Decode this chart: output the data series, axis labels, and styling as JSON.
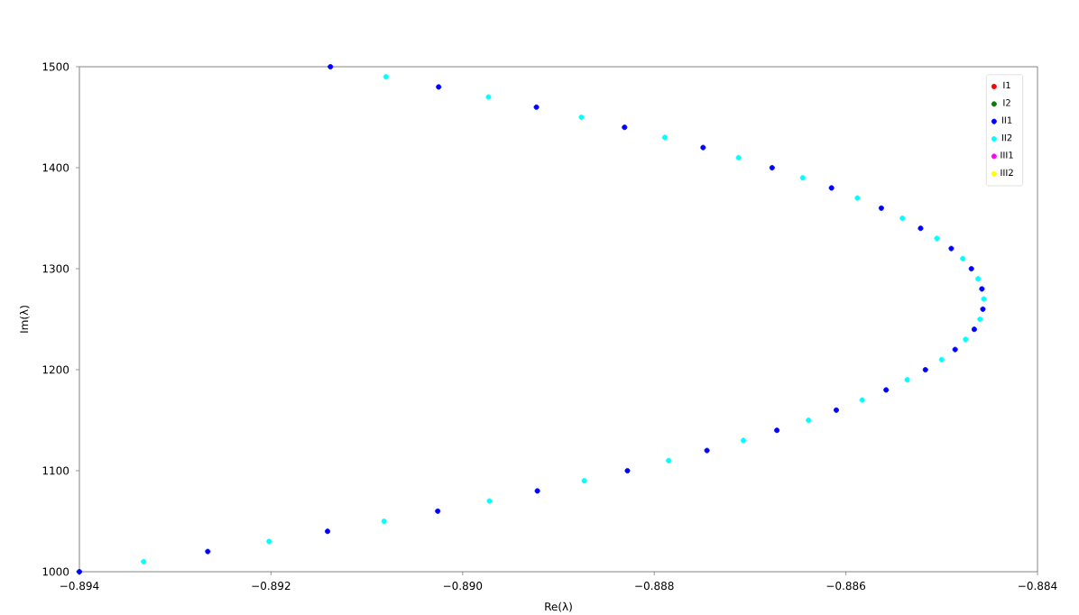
{
  "chart_data": {
    "type": "scatter",
    "xlabel": "Re(λ)",
    "ylabel": "Im(λ)",
    "xlim": [
      -0.894,
      -0.884
    ],
    "ylim": [
      1000,
      1500
    ],
    "xticks": [
      {
        "value": -0.894,
        "label": "−0.894"
      },
      {
        "value": -0.892,
        "label": "−0.892"
      },
      {
        "value": -0.89,
        "label": "−0.890"
      },
      {
        "value": -0.888,
        "label": "−0.888"
      },
      {
        "value": -0.886,
        "label": "−0.886"
      },
      {
        "value": -0.884,
        "label": "−0.884"
      }
    ],
    "yticks": [
      1000,
      1100,
      1200,
      1300,
      1400,
      1500
    ],
    "marker": "circle",
    "legend": "top right",
    "grid": false,
    "series": [
      {
        "name": "I1",
        "color": "#ff0000"
      },
      {
        "name": "I2",
        "color": "#008000"
      },
      {
        "name": "II1",
        "color": "#0000ff",
        "x": [
          -0.894,
          -0.89266,
          -0.89141,
          -0.89026,
          -0.88922,
          -0.88828,
          -0.88745,
          -0.88672,
          -0.8861,
          -0.88558,
          -0.88517,
          -0.88486,
          -0.88466,
          -0.88457,
          -0.88458,
          -0.88469,
          -0.8849,
          -0.88522,
          -0.88563,
          -0.88615,
          -0.88677,
          -0.88749,
          -0.88831,
          -0.88923,
          -0.89025,
          -0.89138
        ],
        "values": [
          1000,
          1020,
          1040,
          1060,
          1080,
          1100,
          1120,
          1140,
          1160,
          1180,
          1200,
          1220,
          1240,
          1260,
          1280,
          1300,
          1320,
          1340,
          1360,
          1380,
          1400,
          1420,
          1440,
          1460,
          1480,
          1500
        ]
      },
      {
        "name": "II2",
        "color": "#00ffff",
        "x": [
          -0.89333,
          -0.89202,
          -0.89082,
          -0.88972,
          -0.88873,
          -0.88785,
          -0.88707,
          -0.88639,
          -0.88583,
          -0.88536,
          -0.885,
          -0.88475,
          -0.8846,
          -0.88456,
          -0.88462,
          -0.88478,
          -0.88505,
          -0.88541,
          -0.88588,
          -0.88645,
          -0.88712,
          -0.88789,
          -0.88876,
          -0.88973,
          -0.8908
        ],
        "values": [
          1010,
          1030,
          1050,
          1070,
          1090,
          1110,
          1130,
          1150,
          1170,
          1190,
          1210,
          1230,
          1250,
          1270,
          1290,
          1310,
          1330,
          1350,
          1370,
          1390,
          1410,
          1430,
          1450,
          1470,
          1490
        ]
      },
      {
        "name": "III1",
        "color": "#ff00ff"
      },
      {
        "name": "III2",
        "color": "#ffff00"
      }
    ]
  }
}
